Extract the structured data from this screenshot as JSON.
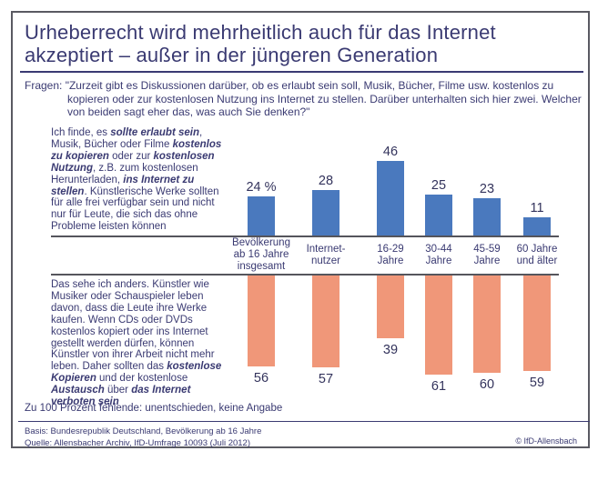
{
  "header": {
    "title": "Urheberrecht wird mehrheitlich auch für das Internet\nakzeptiert – außer in der jüngeren Generation",
    "question_label": "Fragen:",
    "question_text": "\"Zurzeit gibt es Diskussionen darüber, ob es erlaubt sein soll, Musik, Bücher, Filme usw. kostenlos zu kopieren oder zur kostenlosen Nutzung ins Internet zu stellen. Darüber unterhalten sich hier zwei. Welcher von beiden sagt eher das, was auch Sie denken?\""
  },
  "statements": {
    "pro": {
      "segments": [
        {
          "t": "Ich finde, es "
        },
        {
          "t": "sollte erlaubt sein",
          "b": true
        },
        {
          "t": ", Musik, Bücher oder Filme "
        },
        {
          "t": "kostenlos zu kopieren",
          "b": true
        },
        {
          "t": " oder zur "
        },
        {
          "t": "kostenlosen Nutzung",
          "b": true
        },
        {
          "t": ", z.B. zum kostenlosen Herunterladen, "
        },
        {
          "t": "ins Internet zu stellen",
          "b": true
        },
        {
          "t": ". Künstlerische Werke sollten für alle frei verfügbar sein und nicht nur für Leute, die sich das ohne Probleme leisten können"
        }
      ]
    },
    "contra": {
      "segments": [
        {
          "t": "Das sehe ich anders. Künstler wie Musiker oder Schauspieler leben davon, dass die Leute ihre Werke kaufen. Wenn CDs oder DVDs kostenlos kopiert oder ins Internet gestellt werden dürfen, können Künstler von ihrer Arbeit nicht mehr leben. Daher sollten das "
        },
        {
          "t": "kostenlose Kopieren",
          "b": true
        },
        {
          "t": " und der kostenlose "
        },
        {
          "t": "Austausch",
          "b": true
        },
        {
          "t": " über "
        },
        {
          "t": "das Internet verboten sein",
          "b": true
        }
      ]
    }
  },
  "chart_data": {
    "type": "bar",
    "orientation": "diverging-vertical",
    "unit": "Prozent",
    "categories": [
      "Bevölkerung\nab 16 Jahre\ninsgesamt",
      "Internet-\nnutzer",
      "16-29\nJahre",
      "30-44\nJahre",
      "45-59\nJahre",
      "60 Jahre\nund älter"
    ],
    "series": [
      {
        "name": "erlaubt-sein",
        "direction": "up",
        "color": "#4a79be",
        "values": [
          24,
          28,
          46,
          25,
          23,
          11
        ],
        "labels": [
          "24 %",
          "28",
          "46",
          "25",
          "23",
          "11"
        ]
      },
      {
        "name": "verboten-sein",
        "direction": "down",
        "color": "#f09779",
        "values": [
          56,
          57,
          39,
          61,
          60,
          59
        ],
        "labels": [
          "56",
          "57",
          "39",
          "61",
          "60",
          "59"
        ]
      }
    ],
    "axis": {
      "baseline_value": 0,
      "grid": false,
      "legend": "none"
    }
  },
  "footer": {
    "note": "Zu 100 Prozent fehlende: unentschieden, keine Angabe",
    "basis": "Basis: Bundesrepublik Deutschland, Bevölkerung ab 16 Jahre",
    "quelle": "Quelle: Allensbacher Archiv, IfD-Umfrage 10093 (Juli 2012)",
    "copyright": "© IfD-Allensbach"
  },
  "colors": {
    "text_navy": "#3a3a72",
    "bar_accept_blue": "#4a79be",
    "bar_reject_salmon": "#f09779",
    "frame_border_gray": "#5a5a62",
    "baseline_gray": "#55555c"
  }
}
